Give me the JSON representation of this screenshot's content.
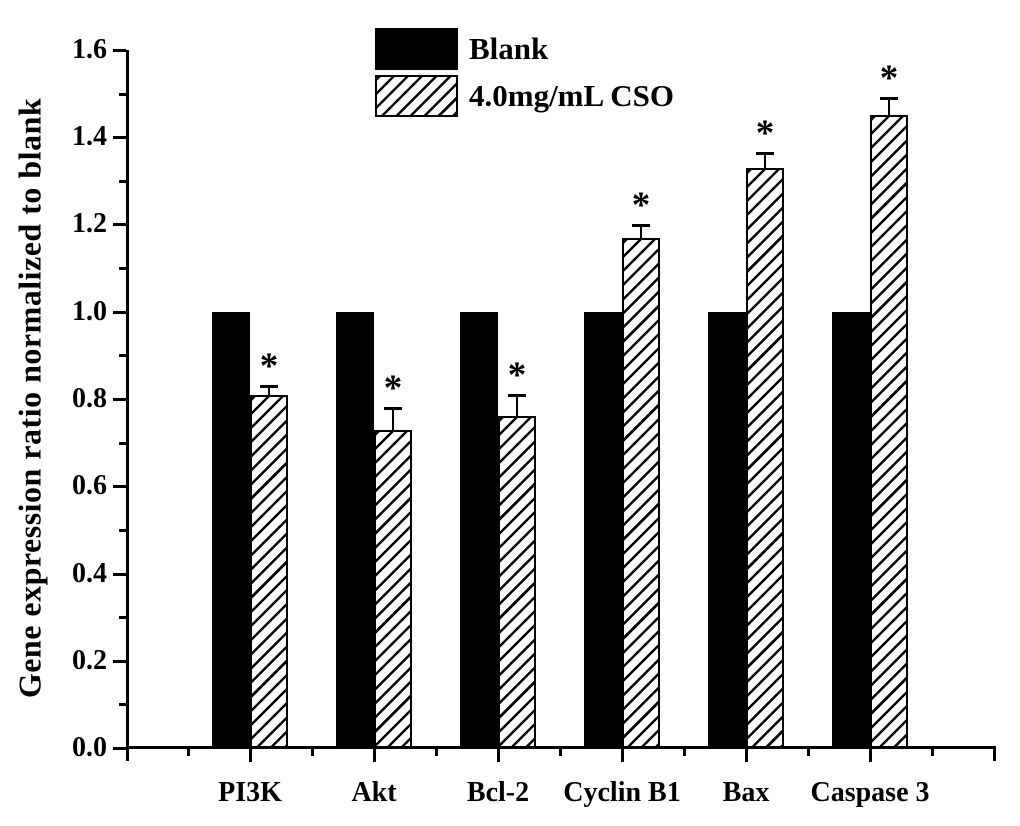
{
  "figure": {
    "background_color": "#ffffff",
    "ink_color": "#000000"
  },
  "chart_data": {
    "type": "bar",
    "title": "",
    "ylabel": "Gene expression ratio normalized to blank",
    "xlabel": "",
    "categories": [
      "PI3K",
      "Akt",
      "Bcl-2",
      "Cyclin B1",
      "Bax",
      "Caspase 3"
    ],
    "series": [
      {
        "name": "Blank",
        "swatch": "solid-black",
        "values": [
          1.0,
          1.0,
          1.0,
          1.0,
          1.0,
          1.0
        ],
        "errors": [
          0,
          0,
          0,
          0,
          0,
          0
        ],
        "sig": [
          "",
          "",
          "",
          "",
          "",
          ""
        ]
      },
      {
        "name": "4.0mg/mL CSO",
        "swatch": "diagonal-hatch",
        "values": [
          0.81,
          0.73,
          0.76,
          1.17,
          1.33,
          1.45
        ],
        "errors": [
          0.02,
          0.05,
          0.05,
          0.03,
          0.035,
          0.04
        ],
        "sig": [
          "*",
          "*",
          "*",
          "*",
          "*",
          "*"
        ]
      }
    ],
    "ylim": [
      0.0,
      1.6
    ],
    "ytick_labels": [
      "0.0",
      "0.2",
      "0.4",
      "0.6",
      "0.8",
      "1.0",
      "1.2",
      "1.4",
      "1.6"
    ],
    "ytick_step": 0.2,
    "yminor_step": 0.1,
    "error_bars": "upper-only",
    "legend_position": "top-center",
    "grid": false
  }
}
